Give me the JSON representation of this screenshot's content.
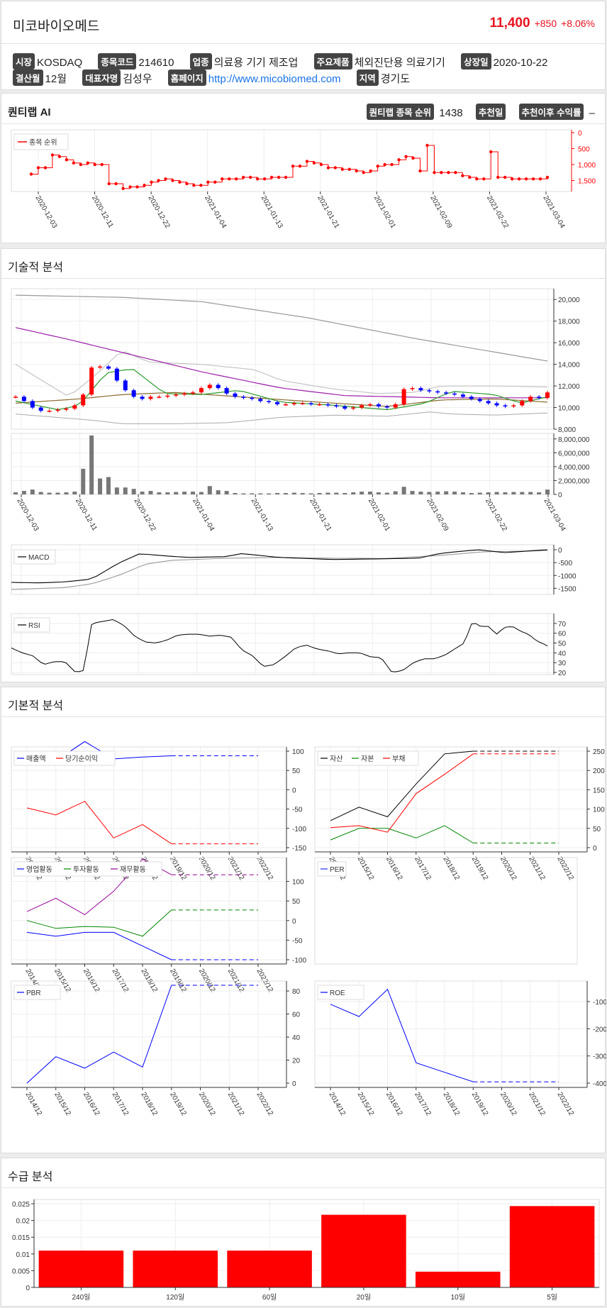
{
  "header": {
    "name": "미코바이오메드",
    "price": "11,400",
    "change": "+850",
    "change_pct": "+8.06%"
  },
  "info": {
    "row1": [
      {
        "tag": "시장",
        "value": "KOSDAQ"
      },
      {
        "tag": "종목코드",
        "value": "214610"
      },
      {
        "tag": "업종",
        "value": "의료용 기기 제조업"
      },
      {
        "tag": "주요제품",
        "value": "체외진단용 의료기기"
      },
      {
        "tag": "상장일",
        "value": "2020-10-22"
      }
    ],
    "row2": [
      {
        "tag": "결산월",
        "value": "12월"
      },
      {
        "tag": "대표자명",
        "value": "김성우"
      },
      {
        "tag": "홈페이지",
        "value": "http://www.micobiomed.com"
      },
      {
        "tag": "지역",
        "value": "경기도"
      }
    ]
  },
  "quant": {
    "title": "퀀티랩 AI",
    "rank_tag": "퀀티랩 종목 순위",
    "rank_value": "1438",
    "rec_tag": "추천일",
    "ret_tag": "추천이후 수익률",
    "ret_value": "–"
  },
  "sections": {
    "tech": "기술적 분석",
    "fund": "기본적 분석",
    "supply": "수급 분석"
  },
  "dates": [
    "2020-12-03",
    "2020-12-11",
    "2020-12-22",
    "2021-01-04",
    "2021-01-13",
    "2021-01-21",
    "2021-02-01",
    "2021-02-09",
    "2021-02-22",
    "2021-03-04"
  ],
  "years": [
    "2014/12",
    "2015/12",
    "2016/12",
    "2017/12",
    "2018/12",
    "2019/12",
    "2020/12",
    "2021/12",
    "2022/12"
  ],
  "colors": {
    "up": "#ff0000",
    "down": "#0000ff",
    "accent": "#e8131f",
    "tag_bg": "#444444"
  },
  "chart_data": [
    {
      "type": "line",
      "title": "",
      "legend": [
        "종목 순위"
      ],
      "x": [
        "2020-12-03",
        "2020-12-11",
        "2020-12-22",
        "2021-01-04",
        "2021-01-13",
        "2021-01-21",
        "2021-02-01",
        "2021-02-09",
        "2021-02-22",
        "2021-03-04"
      ],
      "series": [
        {
          "name": "종목 순위",
          "values": [
            1300,
            900,
            1750,
            1450,
            1450,
            900,
            1300,
            1200,
            1450,
            1450
          ]
        }
      ],
      "ylim": [
        0,
        1800
      ],
      "y_inverted": true,
      "yticks": [
        "0",
        "500",
        "1,000",
        "1,500"
      ]
    },
    {
      "type": "line",
      "title": "",
      "x": [
        "2020-12-03",
        "2020-12-11",
        "2020-12-22",
        "2021-01-04",
        "2021-01-13",
        "2021-01-21",
        "2021-02-01",
        "2021-02-09",
        "2021-02-22",
        "2021-03-04"
      ],
      "series": [
        {
          "name": "close",
          "values": [
            10900,
            12500,
            11000,
            11400,
            10400,
            10300,
            10100,
            11700,
            10300,
            11400
          ]
        }
      ],
      "ylim": [
        8000,
        21000
      ],
      "yticks": [
        "8,000",
        "10,000",
        "12,000",
        "14,000",
        "16,000",
        "18,000",
        "20,000"
      ]
    },
    {
      "type": "bar",
      "title": "",
      "x": [
        "2020-12-03",
        "2020-12-11",
        "2020-12-22",
        "2021-01-04",
        "2021-01-13",
        "2021-01-21",
        "2021-02-01",
        "2021-02-09",
        "2021-02-22",
        "2021-03-04"
      ],
      "values": [
        300000,
        8500000,
        700000,
        1200000,
        200000,
        300000,
        350000,
        1100000,
        350000,
        700000
      ],
      "yticks": [
        "0",
        "2,000,000",
        "4,000,000",
        "6,000,000",
        "8,000,000"
      ]
    },
    {
      "type": "line",
      "title": "",
      "legend": [
        "MACD"
      ],
      "yticks": [
        "-1500",
        "-1000",
        "-500",
        "0"
      ]
    },
    {
      "type": "line",
      "title": "",
      "legend": [
        "RSI"
      ],
      "yticks": [
        "20",
        "30",
        "40",
        "50",
        "60",
        "70"
      ]
    },
    {
      "type": "line",
      "legend": [
        "매출액",
        "당기순이익"
      ],
      "yticks": [
        "-150",
        "-100",
        "-50",
        "0",
        "50",
        "100"
      ]
    },
    {
      "type": "line",
      "legend": [
        "자산",
        "자본",
        "부채"
      ],
      "yticks": [
        "0",
        "50",
        "100",
        "150",
        "200",
        "250"
      ]
    },
    {
      "type": "line",
      "legend": [
        "영업활동",
        "투자활동",
        "재무활동"
      ],
      "yticks": [
        "-100",
        "-50",
        "0",
        "50",
        "100"
      ]
    },
    {
      "type": "line",
      "legend": [
        "PER"
      ]
    },
    {
      "type": "line",
      "legend": [
        "PBR"
      ],
      "yticks": [
        "0",
        "20",
        "40",
        "60",
        "80"
      ]
    },
    {
      "type": "line",
      "legend": [
        "ROE"
      ],
      "yticks": [
        "-400",
        "-300",
        "-200",
        "-100"
      ]
    },
    {
      "type": "bar",
      "categories": [
        "240일",
        "120일",
        "60일",
        "20일",
        "10일",
        "5일"
      ],
      "values": [
        0.011,
        0.011,
        0.011,
        0.0217,
        0.0047,
        0.0243
      ],
      "ylim": [
        0,
        0.025
      ],
      "yticks": [
        "0",
        "0.005",
        "0.01",
        "0.015",
        "0.02",
        "0.025"
      ]
    }
  ]
}
